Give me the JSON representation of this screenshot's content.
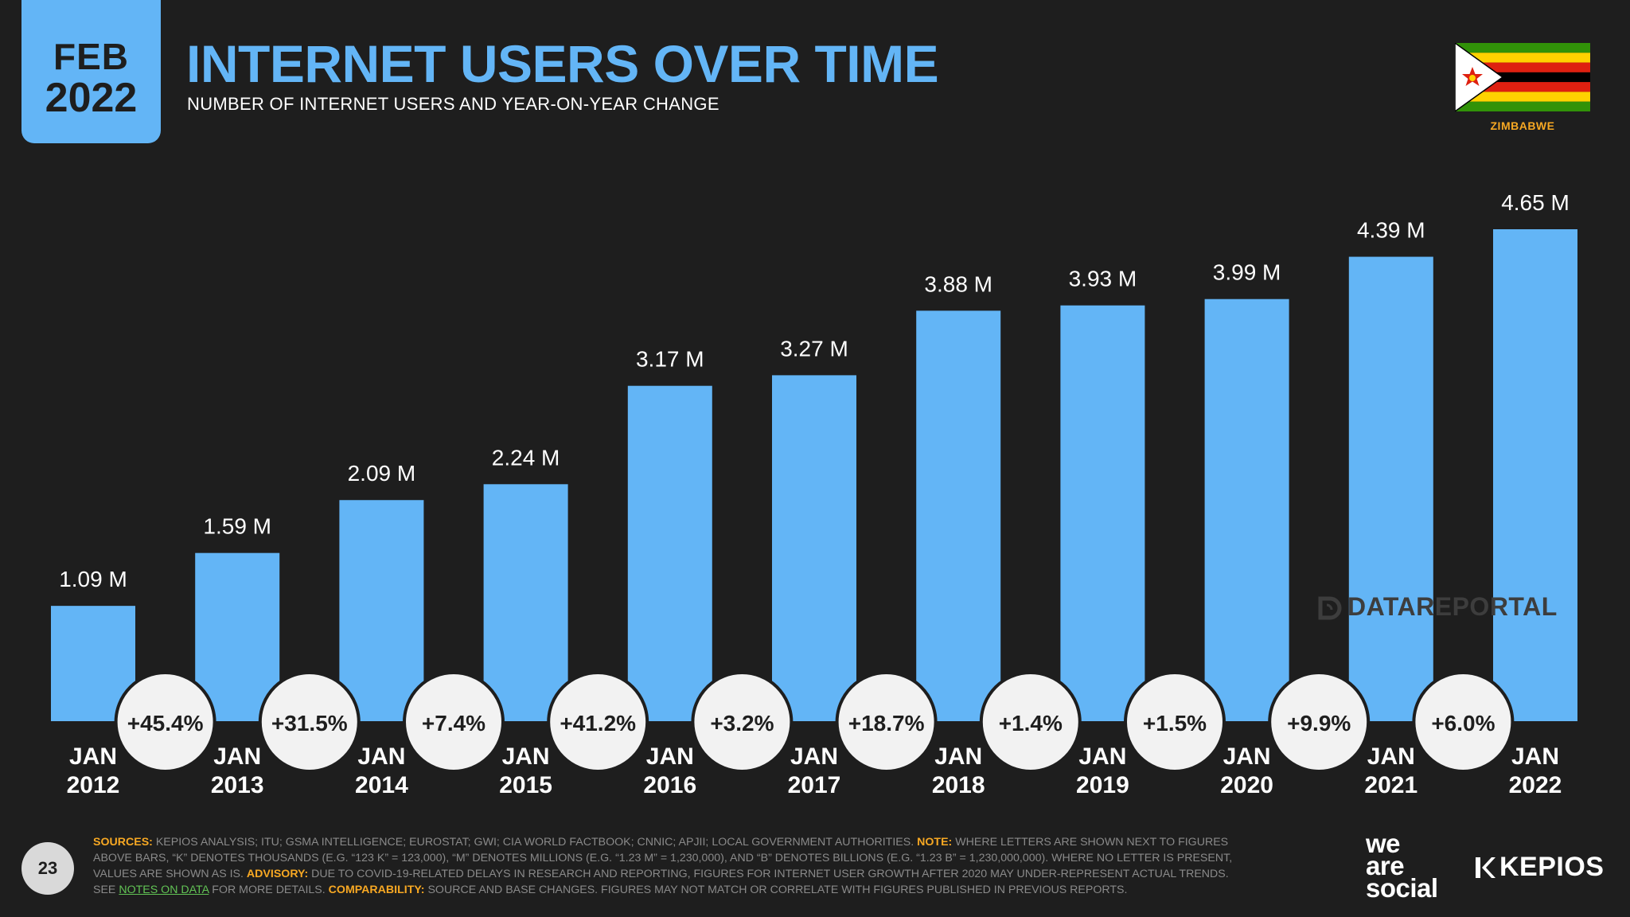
{
  "header": {
    "date_month": "FEB",
    "date_year": "2022",
    "title": "INTERNET USERS OVER TIME",
    "subtitle": "NUMBER OF INTERNET USERS AND YEAR-ON-YEAR CHANGE"
  },
  "country": {
    "name": "ZIMBABWE"
  },
  "watermark": "DATAREPORTAL",
  "footer": {
    "page_number": "23",
    "sources_label": "SOURCES:",
    "sources_text": "KEPIOS ANALYSIS; ITU; GSMA INTELLIGENCE; EUROSTAT; GWI; CIA WORLD FACTBOOK; CNNIC; APJII; LOCAL GOVERNMENT AUTHORITIES.",
    "note_label": "NOTE:",
    "note_text": "WHERE LETTERS ARE SHOWN NEXT TO FIGURES ABOVE BARS, “K” DENOTES THOUSANDS (E.G. “123 K” = 123,000), “M” DENOTES MILLIONS (E.G. “1.23 M” = 1,230,000), AND “B” DENOTES BILLIONS (E.G. “1.23 B” = 1,230,000,000). WHERE NO LETTER IS PRESENT, VALUES ARE SHOWN AS IS.",
    "advisory_label": "ADVISORY:",
    "advisory_text": "DUE TO COVID-19-RELATED DELAYS IN RESEARCH AND REPORTING, FIGURES FOR INTERNET USER GROWTH AFTER 2020 MAY UNDER-REPRESENT ACTUAL TRENDS. SEE",
    "notes_link": "NOTES ON DATA",
    "after_link": "FOR MORE DETAILS.",
    "comparability_label": "COMPARABILITY:",
    "comparability_text": "SOURCE AND BASE CHANGES. FIGURES MAY NOT MATCH OR CORRELATE WITH FIGURES PUBLISHED IN PREVIOUS REPORTS.",
    "brand_line1": "we",
    "brand_line2": "are",
    "brand_line3": "social",
    "kepios": "KEPIOS"
  },
  "colors": {
    "bar": "#63b5f6",
    "background": "#1e1e1e",
    "accent": "#f7a823",
    "bubble": "#f2f2f2"
  },
  "chart_data": {
    "type": "bar",
    "title": "INTERNET USERS OVER TIME",
    "subtitle": "NUMBER OF INTERNET USERS AND YEAR-ON-YEAR CHANGE",
    "categories": [
      {
        "month": "JAN",
        "year": "2012"
      },
      {
        "month": "JAN",
        "year": "2013"
      },
      {
        "month": "JAN",
        "year": "2014"
      },
      {
        "month": "JAN",
        "year": "2015"
      },
      {
        "month": "JAN",
        "year": "2016"
      },
      {
        "month": "JAN",
        "year": "2017"
      },
      {
        "month": "JAN",
        "year": "2018"
      },
      {
        "month": "JAN",
        "year": "2019"
      },
      {
        "month": "JAN",
        "year": "2020"
      },
      {
        "month": "JAN",
        "year": "2021"
      },
      {
        "month": "JAN",
        "year": "2022"
      }
    ],
    "values": [
      1.09,
      1.59,
      2.09,
      2.24,
      3.17,
      3.27,
      3.88,
      3.93,
      3.99,
      4.39,
      4.65
    ],
    "value_labels": [
      "1.09 M",
      "1.59 M",
      "2.09 M",
      "2.24 M",
      "3.17 M",
      "3.27 M",
      "3.88 M",
      "3.93 M",
      "3.99 M",
      "4.39 M",
      "4.65 M"
    ],
    "yoy_changes": [
      "+45.4%",
      "+31.5%",
      "+7.4%",
      "+41.2%",
      "+3.2%",
      "+18.7%",
      "+1.4%",
      "+1.5%",
      "+9.9%",
      "+6.0%"
    ],
    "unit": "M",
    "ylim": [
      0,
      4.65
    ],
    "grid": false,
    "xlabel": "",
    "ylabel": ""
  }
}
